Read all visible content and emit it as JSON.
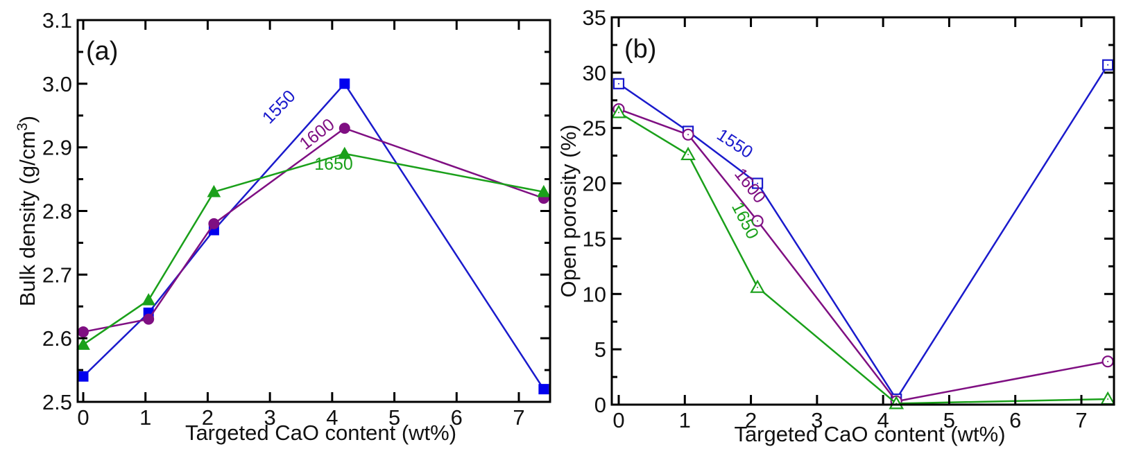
{
  "chart_data": [
    {
      "type": "line",
      "panel_label": "(a)",
      "title": "",
      "xlabel": "Targeted CaO content (wt%)",
      "ylabel_main": "Bulk density (g/cm",
      "ylabel_sup": "3",
      "ylabel_tail": ")",
      "xlim": [
        -0.1,
        7.5
      ],
      "ylim": [
        2.5,
        3.1
      ],
      "xticks": [
        0,
        1,
        2,
        3,
        4,
        5,
        6,
        7
      ],
      "xtick_labels": [
        "0",
        "1",
        "2",
        "3",
        "4",
        "5",
        "6",
        "7"
      ],
      "yticks": [
        2.5,
        2.6,
        2.7,
        2.8,
        2.9,
        3.0,
        3.1
      ],
      "ytick_labels": [
        "2.5",
        "2.6",
        "2.7",
        "2.8",
        "2.9",
        "3.0",
        "3.1"
      ],
      "grid": false,
      "legend": "inline labels",
      "series": [
        {
          "name": "1550",
          "color": "#0000ee",
          "line_color": "#1a1acc",
          "marker": "square-filled",
          "x": [
            0,
            1.05,
            2.1,
            4.2,
            7.4
          ],
          "values": [
            2.54,
            2.64,
            2.77,
            3.0,
            2.52
          ]
        },
        {
          "name": "1600",
          "color": "#7f0f82",
          "line_color": "#7f0f82",
          "marker": "circle-filled",
          "x": [
            0,
            1.05,
            2.1,
            4.2,
            7.4
          ],
          "values": [
            2.61,
            2.63,
            2.78,
            2.93,
            2.82
          ]
        },
        {
          "name": "1650",
          "color": "#1aa01a",
          "line_color": "#1aa01a",
          "marker": "triangle-filled",
          "x": [
            0,
            1.05,
            2.1,
            4.2,
            7.4
          ],
          "values": [
            2.59,
            2.66,
            2.83,
            2.89,
            2.83
          ]
        }
      ]
    },
    {
      "type": "line",
      "panel_label": "(b)",
      "title": "",
      "xlabel": "Targeted CaO content (wt%)",
      "ylabel_main": "Open porosity (%)",
      "ylabel_sup": "",
      "ylabel_tail": "",
      "xlim": [
        -0.1,
        7.5
      ],
      "ylim": [
        0,
        35
      ],
      "xticks": [
        0,
        1,
        2,
        3,
        4,
        5,
        6,
        7
      ],
      "xtick_labels": [
        "0",
        "1",
        "2",
        "3",
        "4",
        "5",
        "6",
        "7"
      ],
      "yticks": [
        0,
        5,
        10,
        15,
        20,
        25,
        30,
        35
      ],
      "ytick_labels": [
        "0",
        "5",
        "10",
        "15",
        "20",
        "25",
        "30",
        "35"
      ],
      "grid": false,
      "legend": "inline labels",
      "series": [
        {
          "name": "1550",
          "color": "#1a1acc",
          "line_color": "#1a1acc",
          "marker": "square-open",
          "x": [
            0,
            1.05,
            2.1,
            4.2,
            7.4
          ],
          "values": [
            29.0,
            24.7,
            20.0,
            0.5,
            30.7
          ]
        },
        {
          "name": "1600",
          "color": "#7f0f82",
          "line_color": "#7f0f82",
          "marker": "circle-open",
          "x": [
            0,
            1.05,
            2.1,
            4.2,
            7.4
          ],
          "values": [
            26.7,
            24.4,
            16.6,
            0.3,
            3.9
          ]
        },
        {
          "name": "1650",
          "color": "#1aa01a",
          "line_color": "#1aa01a",
          "marker": "triangle-open",
          "x": [
            0,
            1.05,
            2.1,
            4.2,
            7.4
          ],
          "values": [
            26.4,
            22.6,
            10.6,
            0.1,
            0.5
          ]
        }
      ]
    }
  ]
}
